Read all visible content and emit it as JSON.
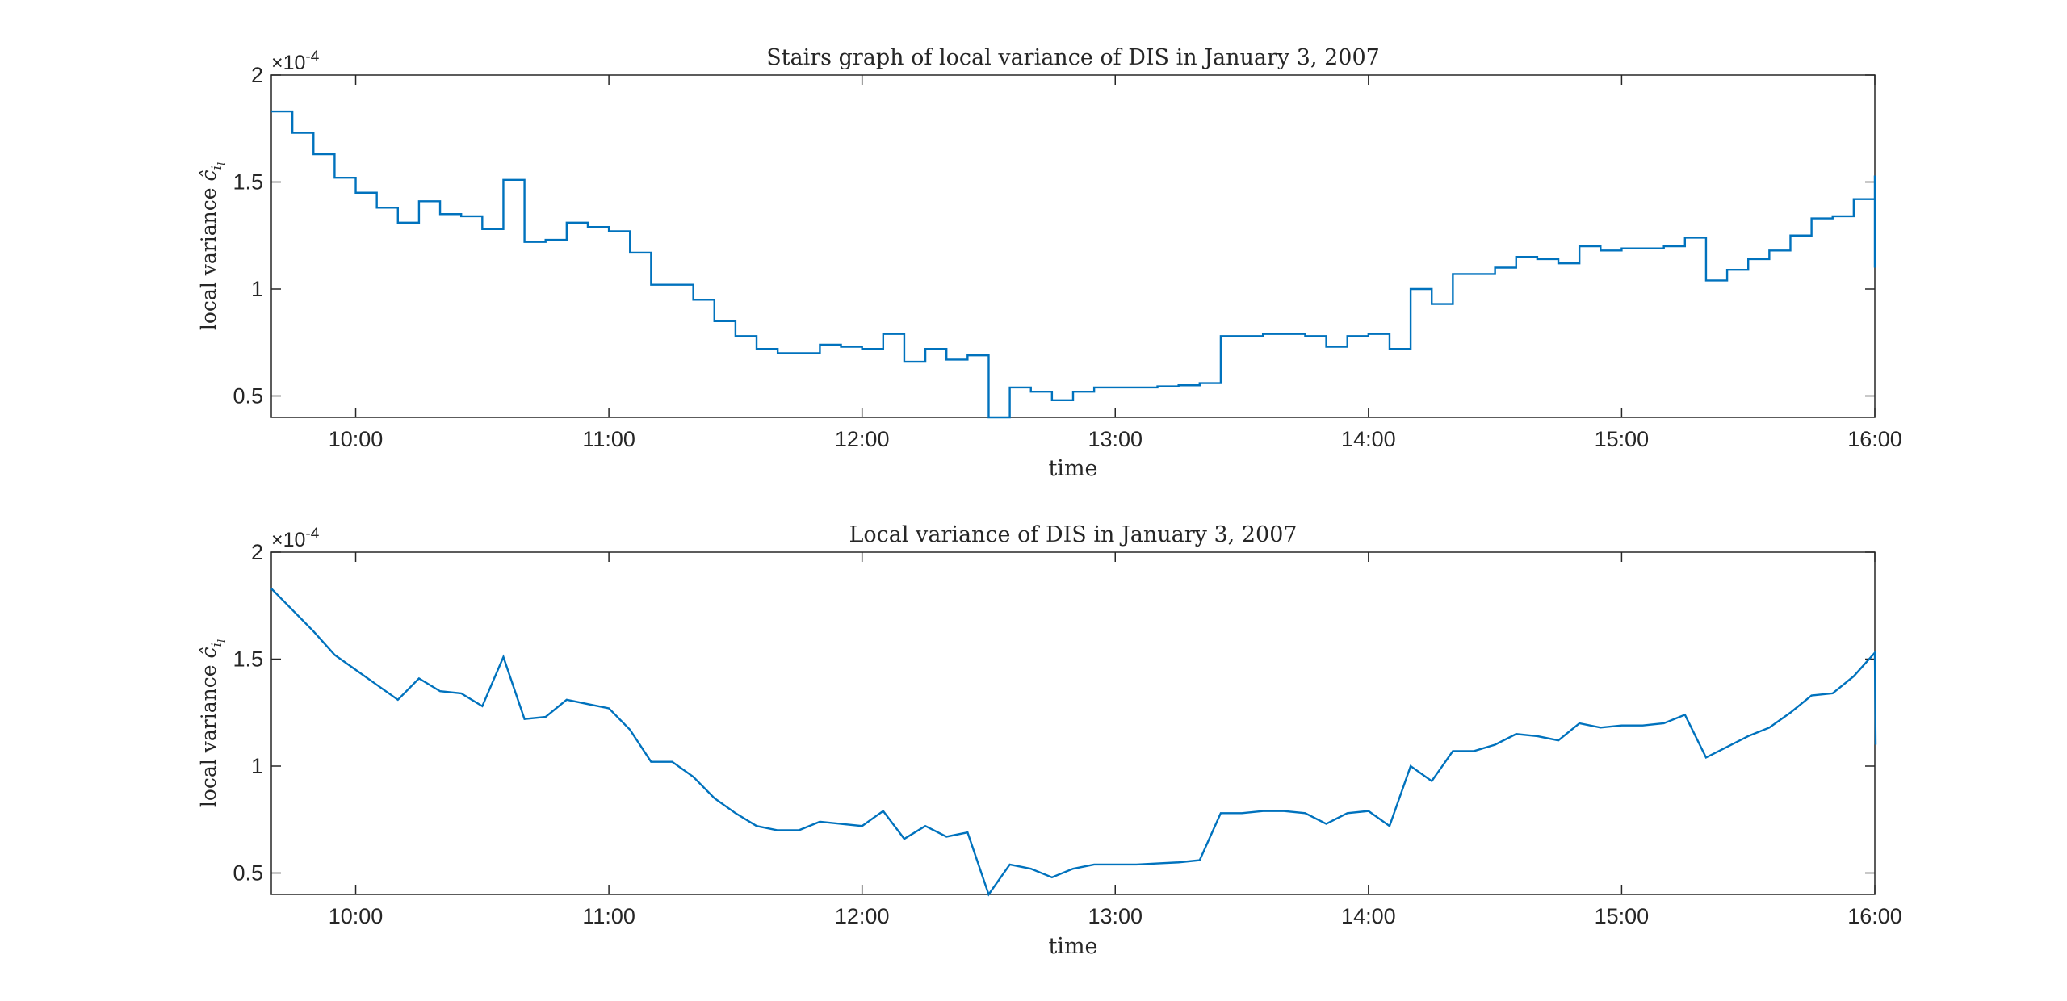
{
  "chart_data": [
    {
      "type": "stairs",
      "title": "Stairs graph of local variance of DIS in January 3, 2007",
      "xlabel": "time",
      "ylabel": "local variance ĉ_{i_l}",
      "ylabel_main": "local variance ",
      "ylabel_symbol": "ĉ",
      "ylabel_sub": "i",
      "ylabel_subsub": "l",
      "exponent": {
        "base": "×10",
        "power": "-4"
      },
      "xlim": [
        "09:40",
        "16:00"
      ],
      "ylim": [
        0.4,
        2.0
      ],
      "yticks": [
        0.5,
        1,
        1.5,
        2
      ],
      "ytick_labels": [
        "0.5",
        "1",
        "1.5",
        "2"
      ],
      "xticks": [
        "10:00",
        "11:00",
        "12:00",
        "13:00",
        "14:00",
        "15:00",
        "16:00"
      ],
      "grid": false,
      "series_ref": "local_variance"
    },
    {
      "type": "line",
      "title": "Local variance of DIS in January 3, 2007",
      "xlabel": "time",
      "ylabel": "local variance ĉ_{i_l}",
      "ylabel_main": "local variance ",
      "ylabel_symbol": "ĉ",
      "ylabel_sub": "i",
      "ylabel_subsub": "l",
      "exponent": {
        "base": "×10",
        "power": "-4"
      },
      "xlim": [
        "09:40",
        "16:00"
      ],
      "ylim": [
        0.4,
        2.0
      ],
      "yticks": [
        0.5,
        1,
        1.5,
        2
      ],
      "ytick_labels": [
        "0.5",
        "1",
        "1.5",
        "2"
      ],
      "xticks": [
        "10:00",
        "11:00",
        "12:00",
        "13:00",
        "14:00",
        "15:00",
        "16:00"
      ],
      "grid": false,
      "series_ref": "local_variance"
    }
  ],
  "series_color": "#0072BD",
  "local_variance": {
    "x": [
      "09:40",
      "09:45",
      "09:50",
      "09:55",
      "10:00",
      "10:05",
      "10:10",
      "10:15",
      "10:20",
      "10:25",
      "10:30",
      "10:35",
      "10:40",
      "10:45",
      "10:50",
      "10:55",
      "11:00",
      "11:05",
      "11:10",
      "11:15",
      "11:20",
      "11:25",
      "11:30",
      "11:35",
      "11:40",
      "11:45",
      "11:50",
      "11:55",
      "12:00",
      "12:05",
      "12:10",
      "12:15",
      "12:20",
      "12:25",
      "12:30",
      "12:35",
      "12:40",
      "12:45",
      "12:50",
      "12:55",
      "13:00",
      "13:05",
      "13:10",
      "13:15",
      "13:20",
      "13:25",
      "13:30",
      "13:35",
      "13:40",
      "13:45",
      "13:50",
      "13:55",
      "14:00",
      "14:05",
      "14:10",
      "14:15",
      "14:20",
      "14:25",
      "14:30",
      "14:35",
      "14:40",
      "14:45",
      "14:50",
      "14:55",
      "15:00",
      "15:05",
      "15:10",
      "15:15",
      "15:20",
      "15:25",
      "15:30",
      "15:35",
      "15:40",
      "15:45",
      "15:50",
      "15:55",
      "16:00"
    ],
    "y": [
      1.83,
      1.73,
      1.63,
      1.52,
      1.45,
      1.38,
      1.31,
      1.41,
      1.35,
      1.34,
      1.28,
      1.51,
      1.22,
      1.23,
      1.31,
      1.29,
      1.27,
      1.17,
      1.02,
      1.02,
      0.95,
      0.85,
      0.78,
      0.72,
      0.7,
      0.7,
      0.74,
      0.73,
      0.72,
      0.79,
      0.66,
      0.72,
      0.67,
      0.69,
      0.39,
      0.54,
      0.52,
      0.48,
      0.52,
      0.54,
      0.54,
      0.54,
      0.545,
      0.55,
      0.56,
      0.78,
      0.78,
      0.79,
      0.79,
      0.78,
      0.73,
      0.78,
      0.79,
      0.72,
      1.0,
      0.93,
      1.07,
      1.07,
      1.1,
      1.15,
      1.14,
      1.12,
      1.2,
      1.18,
      1.19,
      1.19,
      1.2,
      1.24,
      1.04,
      1.09,
      1.14,
      1.18,
      1.25,
      1.33,
      1.34,
      1.42,
      1.53
    ],
    "end_drop": 1.1
  }
}
